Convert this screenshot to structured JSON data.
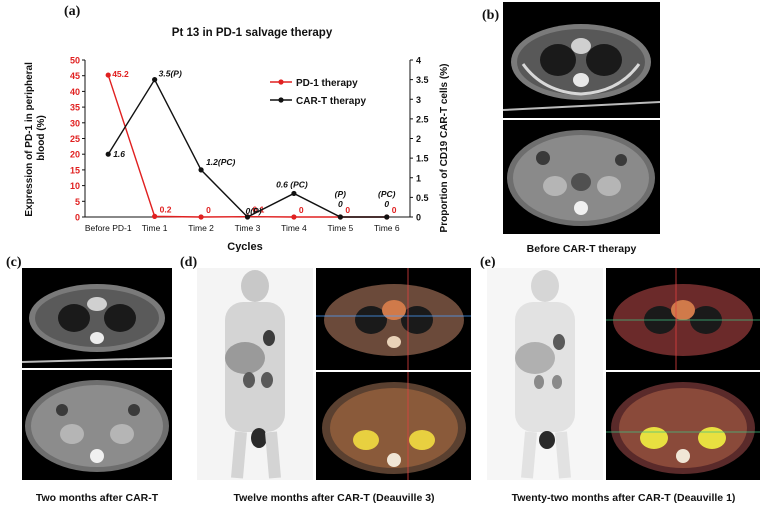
{
  "panels": {
    "a": "(a)",
    "b": "(b)",
    "c": "(c)",
    "d": "(d)",
    "e": "(e)"
  },
  "captions": {
    "b": "Before CAR-T therapy",
    "c": "Two months after CAR-T",
    "d": "Twelve months after CAR-T (Deauville 3)",
    "e": "Twenty-two months after CAR-T (Deauville 1)"
  },
  "colors": {
    "pd1": "#e02020",
    "cart": "#111111"
  },
  "chart_data": {
    "type": "line",
    "title": "Pt 13 in PD-1 salvage therapy",
    "xlabel": "Cycles",
    "ylabel_left": "Expression of PD-1 in peripheral blood (%)",
    "ylabel_right": "Proportion of CD19 CAR-T cells (%)",
    "categories": [
      "Before PD-1",
      "Time 1",
      "Time 2",
      "Time 3",
      "Time 4",
      "Time 5",
      "Time 6"
    ],
    "ylim_left": [
      0,
      50
    ],
    "yticks_left": [
      "0",
      "5",
      "10",
      "15",
      "20",
      "25",
      "30",
      "35",
      "40",
      "45",
      "50"
    ],
    "ylim_right": [
      0,
      4
    ],
    "yticks_right": [
      "0",
      "0.5",
      "1",
      "1.5",
      "2",
      "2.5",
      "3",
      "3.5",
      "4"
    ],
    "legend_position": "right",
    "series": [
      {
        "name": "PD-1 therapy",
        "axis": "left",
        "x_index": [
          0,
          1,
          2,
          3,
          4,
          5,
          6
        ],
        "values": [
          45.2,
          0.2,
          0,
          0.1,
          0,
          0,
          0
        ],
        "labels": [
          "45.2",
          "0.2",
          "0",
          "0.1",
          "0",
          "0",
          "0"
        ]
      },
      {
        "name": "CAR-T therapy",
        "axis": "right",
        "x_index": [
          0,
          1,
          2,
          3,
          4,
          5,
          6
        ],
        "values": [
          1.6,
          3.5,
          1.2,
          0,
          0.6,
          0,
          0
        ],
        "labels": [
          "1.6",
          "3.5(P)",
          "1.2(PC)",
          "0(P)",
          "0.6 (PC)",
          "0",
          "0"
        ],
        "sublabels": [
          "",
          "",
          "",
          "",
          "",
          "(P)",
          "(PC)"
        ]
      }
    ]
  }
}
